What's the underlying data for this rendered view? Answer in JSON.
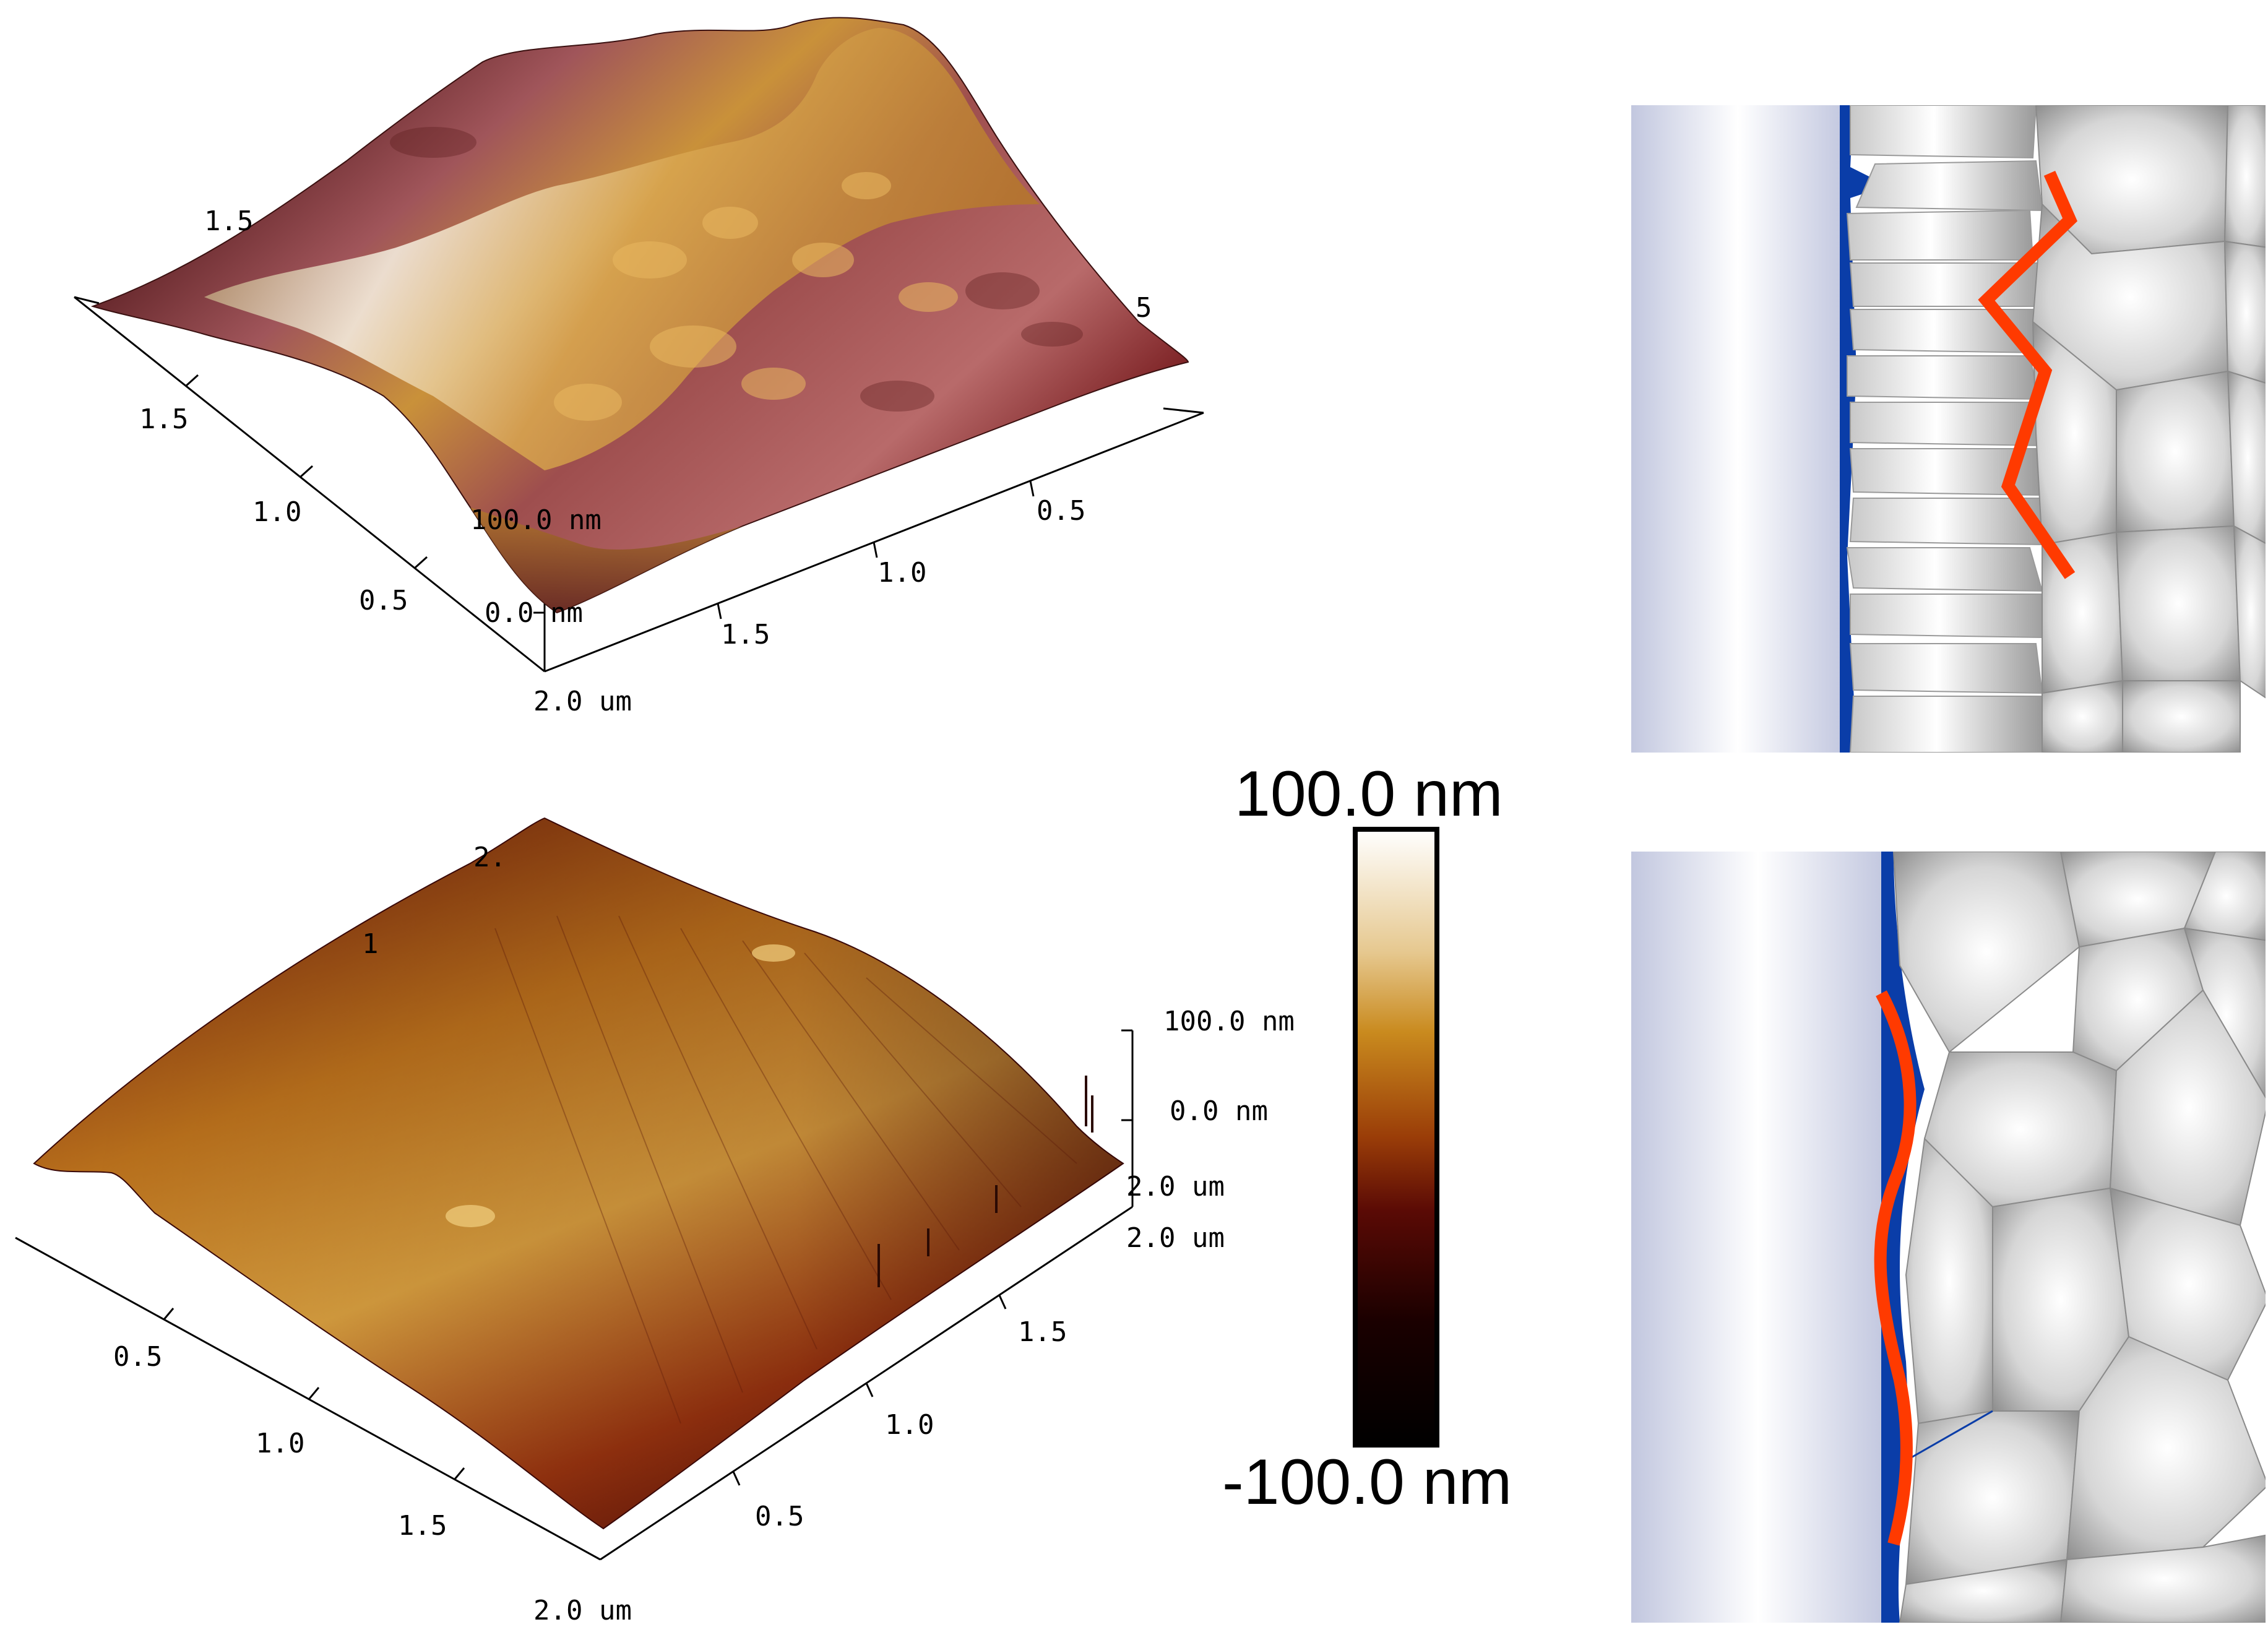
{
  "afm_top": {
    "left_axis_upper_ticks": [
      "1.5",
      "1.5"
    ],
    "left_axis_ticks": [
      "1.5",
      "1.0",
      "0.5"
    ],
    "front_axis_ticks": [
      "0.5",
      "1.0",
      "1.5"
    ],
    "right_partial_tick": "5",
    "z_ticks": [
      "100.0 nm",
      "0.0 nm"
    ],
    "corner_label": "2.0 um"
  },
  "afm_bottom": {
    "left_axis_ticks": [
      "0.5",
      "1.0",
      "1.5"
    ],
    "front_axis_ticks": [
      "0.5",
      "1.0",
      "1.5"
    ],
    "corner_label": "2.0 um",
    "z_ticks": [
      "100.0 nm",
      "0.0 nm"
    ],
    "z_base_labels": [
      "2.0 um",
      "2.0 um"
    ],
    "top_partial_tick": "2.",
    "side_partial_tick": "1"
  },
  "color_scale": {
    "max_label": "100.0 nm",
    "min_label": "-100.0 nm",
    "gradient_stops": [
      "#ffffff",
      "#e8cc9a",
      "#c98a1e",
      "#9a3d08",
      "#5a0a05",
      "#1a0000",
      "#000000"
    ]
  },
  "schematic_top": {
    "description_colors": {
      "substrate": "#c6cbe0",
      "interlayer": "#0a3da8",
      "grains": "#dcdcdc",
      "path": "#ff3a00"
    }
  },
  "schematic_bottom": {
    "description_colors": {
      "substrate": "#c6cbe0",
      "interlayer": "#0a3da8",
      "grains": "#dcdcdc",
      "path": "#ff3a00"
    }
  }
}
